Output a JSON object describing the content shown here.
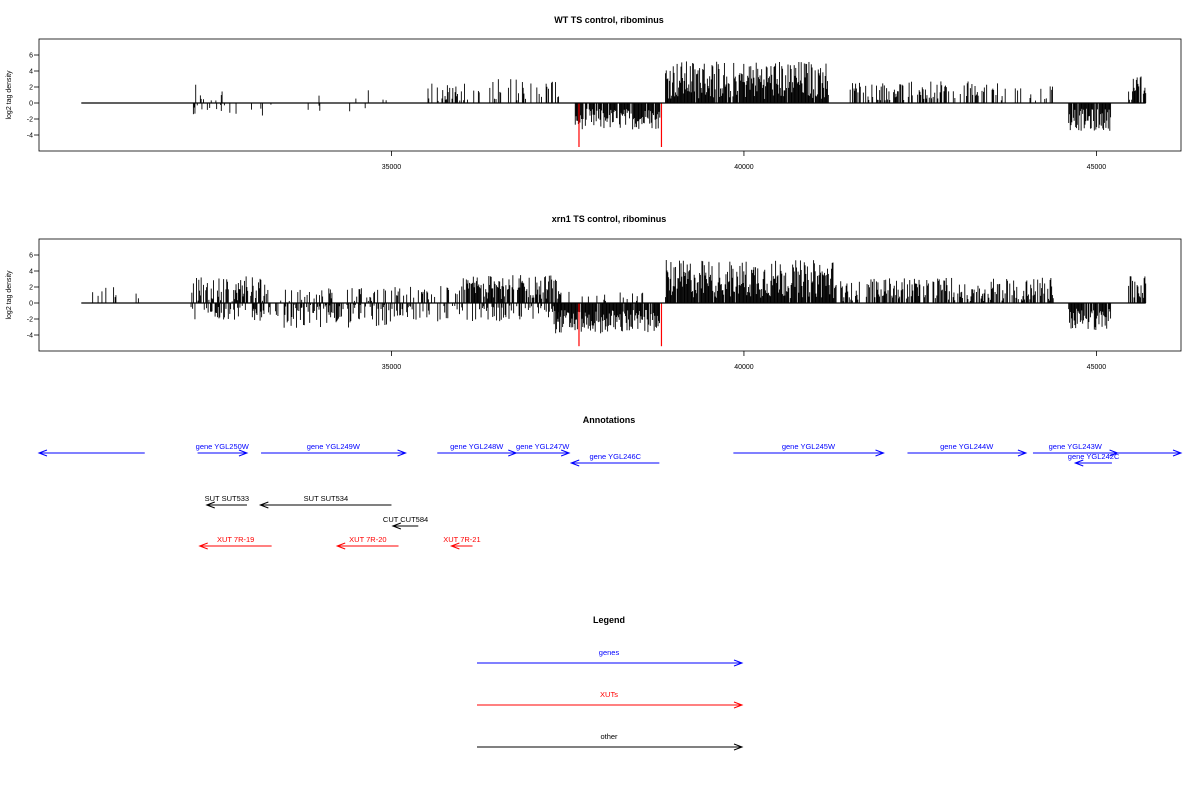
{
  "colors": {
    "gene": "#0000ff",
    "xut": "#ff0000",
    "other": "#000000",
    "signal": "#000000",
    "highlight": "#ff0000"
  },
  "chart_data": [
    {
      "type": "bar",
      "title": "WT TS control, ribominus",
      "ylabel": "log2 tag density",
      "xlim": [
        30000,
        46200
      ],
      "ylim": [
        -6,
        8
      ],
      "x_ticks": [
        35000,
        40000,
        45000
      ],
      "y_ticks": [
        -4,
        -2,
        0,
        2,
        4,
        6
      ],
      "baseline": [
        30600,
        45700
      ],
      "grid": false,
      "segments": [
        {
          "x0": 32150,
          "x1": 32650,
          "mean": 0.6,
          "amp": 2.2,
          "p": 0.25
        },
        {
          "x0": 32150,
          "x1": 32650,
          "mean": -0.9,
          "amp": 1.0,
          "p": 0.25
        },
        {
          "x0": 32700,
          "x1": 33300,
          "mean": -0.9,
          "amp": 0.9,
          "p": 0.12
        },
        {
          "x0": 33800,
          "x1": 34000,
          "mean": -0.6,
          "amp": 0.5,
          "p": 0.25
        },
        {
          "x0": 33800,
          "x1": 34000,
          "mean": 1.1,
          "amp": 0.9,
          "p": 0.2
        },
        {
          "x0": 34400,
          "x1": 34900,
          "mean": -0.9,
          "amp": 0.8,
          "p": 0.08
        },
        {
          "x0": 34400,
          "x1": 35100,
          "mean": 0.9,
          "amp": 0.7,
          "p": 0.05
        },
        {
          "x0": 35500,
          "x1": 36300,
          "mean": 1.4,
          "amp": 1.2,
          "p": 0.35
        },
        {
          "x0": 36300,
          "x1": 37000,
          "mean": 1.6,
          "amp": 1.5,
          "p": 0.25
        },
        {
          "x0": 37000,
          "x1": 37400,
          "mean": 1.6,
          "amp": 1.3,
          "p": 0.3
        },
        {
          "x0": 37600,
          "x1": 38800,
          "mean": -2.0,
          "amp": 1.3,
          "p": 0.85
        },
        {
          "x0": 38880,
          "x1": 41200,
          "mean": 2.9,
          "amp": 2.4,
          "p": 0.95
        },
        {
          "x0": 41500,
          "x1": 43600,
          "mean": 1.5,
          "amp": 1.2,
          "p": 0.5
        },
        {
          "x0": 43600,
          "x1": 44400,
          "mean": 1.3,
          "amp": 1.0,
          "p": 0.18
        },
        {
          "x0": 44600,
          "x1": 45200,
          "mean": -2.1,
          "amp": 1.4,
          "p": 0.9
        },
        {
          "x0": 45450,
          "x1": 45700,
          "mean": 1.9,
          "amp": 1.5,
          "p": 0.8
        }
      ],
      "highlights": [
        {
          "x": 37660,
          "y": -5.5
        },
        {
          "x": 38830,
          "y": -5.5
        }
      ]
    },
    {
      "type": "bar",
      "title": "xrn1 TS control, ribominus",
      "ylabel": "log2 tag density",
      "xlim": [
        30000,
        46200
      ],
      "ylim": [
        -6,
        8
      ],
      "x_ticks": [
        35000,
        40000,
        45000
      ],
      "y_ticks": [
        -4,
        -2,
        0,
        2,
        4,
        6
      ],
      "baseline": [
        30600,
        45700
      ],
      "grid": false,
      "segments": [
        {
          "x0": 30600,
          "x1": 31500,
          "mean": 1.0,
          "amp": 1.0,
          "p": 0.05
        },
        {
          "x0": 32150,
          "x1": 33250,
          "mean": 1.7,
          "amp": 1.7,
          "p": 0.6
        },
        {
          "x0": 32150,
          "x1": 33250,
          "mean": -1.3,
          "amp": 1.0,
          "p": 0.4
        },
        {
          "x0": 33250,
          "x1": 35000,
          "mean": -1.6,
          "amp": 1.5,
          "p": 0.55
        },
        {
          "x0": 33400,
          "x1": 35000,
          "mean": 1.0,
          "amp": 0.9,
          "p": 0.3
        },
        {
          "x0": 35000,
          "x1": 36000,
          "mean": 1.2,
          "amp": 1.0,
          "p": 0.35
        },
        {
          "x0": 35000,
          "x1": 36000,
          "mean": -1.3,
          "amp": 1.0,
          "p": 0.35
        },
        {
          "x0": 36000,
          "x1": 37400,
          "mean": 2.0,
          "amp": 1.5,
          "p": 0.7
        },
        {
          "x0": 36000,
          "x1": 37400,
          "mean": -1.3,
          "amp": 1.0,
          "p": 0.3
        },
        {
          "x0": 37300,
          "x1": 38800,
          "mean": -2.3,
          "amp": 1.5,
          "p": 0.95
        },
        {
          "x0": 37500,
          "x1": 38600,
          "mean": 0.8,
          "amp": 0.6,
          "p": 0.15
        },
        {
          "x0": 38880,
          "x1": 41300,
          "mean": 3.0,
          "amp": 2.4,
          "p": 0.95
        },
        {
          "x0": 41300,
          "x1": 44400,
          "mean": 1.7,
          "amp": 1.5,
          "p": 0.6
        },
        {
          "x0": 44600,
          "x1": 45200,
          "mean": -2.0,
          "amp": 1.4,
          "p": 0.9
        },
        {
          "x0": 45450,
          "x1": 45700,
          "mean": 2.0,
          "amp": 1.5,
          "p": 0.8
        }
      ],
      "highlights": [
        {
          "x": 37660,
          "y": -5.4
        },
        {
          "x": 38830,
          "y": -5.4
        }
      ]
    }
  ],
  "annotations": {
    "title": "Annotations",
    "features": [
      {
        "label": "",
        "x0": 31500,
        "x1": 30000,
        "kind": "gene",
        "row": 0
      },
      {
        "label": "gene YGL250W",
        "x0": 32250,
        "x1": 32950,
        "kind": "gene",
        "row": 0
      },
      {
        "label": "gene YGL249W",
        "x0": 33150,
        "x1": 35200,
        "kind": "gene",
        "row": 0
      },
      {
        "label": "gene YGL248W",
        "x0": 35650,
        "x1": 36770,
        "kind": "gene",
        "row": 0
      },
      {
        "label": "gene YGL247W",
        "x0": 36770,
        "x1": 37520,
        "kind": "gene",
        "row": 0
      },
      {
        "label": "gene YGL246C",
        "x0": 38800,
        "x1": 37550,
        "kind": "gene",
        "row": 1
      },
      {
        "label": "gene YGL245W",
        "x0": 39850,
        "x1": 41980,
        "kind": "gene",
        "row": 0
      },
      {
        "label": "gene YGL244W",
        "x0": 42320,
        "x1": 44000,
        "kind": "gene",
        "row": 0
      },
      {
        "label": "gene YGL243W",
        "x0": 44100,
        "x1": 45300,
        "kind": "gene",
        "row": 0
      },
      {
        "label": "gene YGL242C",
        "x0": 45220,
        "x1": 44700,
        "kind": "gene",
        "row": 1
      },
      {
        "label": "",
        "x0": 45300,
        "x1": 46200,
        "kind": "gene",
        "row": 0
      },
      {
        "label": "SUT SUT533",
        "x0": 32950,
        "x1": 32380,
        "kind": "other",
        "row": 2
      },
      {
        "label": "SUT SUT534",
        "x0": 35000,
        "x1": 33140,
        "kind": "other",
        "row": 2
      },
      {
        "label": "CUT CUT584",
        "x0": 35380,
        "x1": 35020,
        "kind": "other",
        "row": 3
      },
      {
        "label": "XUT 7R-19",
        "x0": 33300,
        "x1": 32280,
        "kind": "xut",
        "row": 4
      },
      {
        "label": "XUT 7R-20",
        "x0": 35100,
        "x1": 34230,
        "kind": "xut",
        "row": 4
      },
      {
        "label": "XUT 7R-21",
        "x0": 36150,
        "x1": 35850,
        "kind": "xut",
        "row": 4
      }
    ]
  },
  "legend": {
    "title": "Legend",
    "entries": [
      {
        "label": "genes",
        "kind": "gene"
      },
      {
        "label": "XUTs",
        "kind": "xut"
      },
      {
        "label": "other",
        "kind": "other"
      }
    ]
  }
}
